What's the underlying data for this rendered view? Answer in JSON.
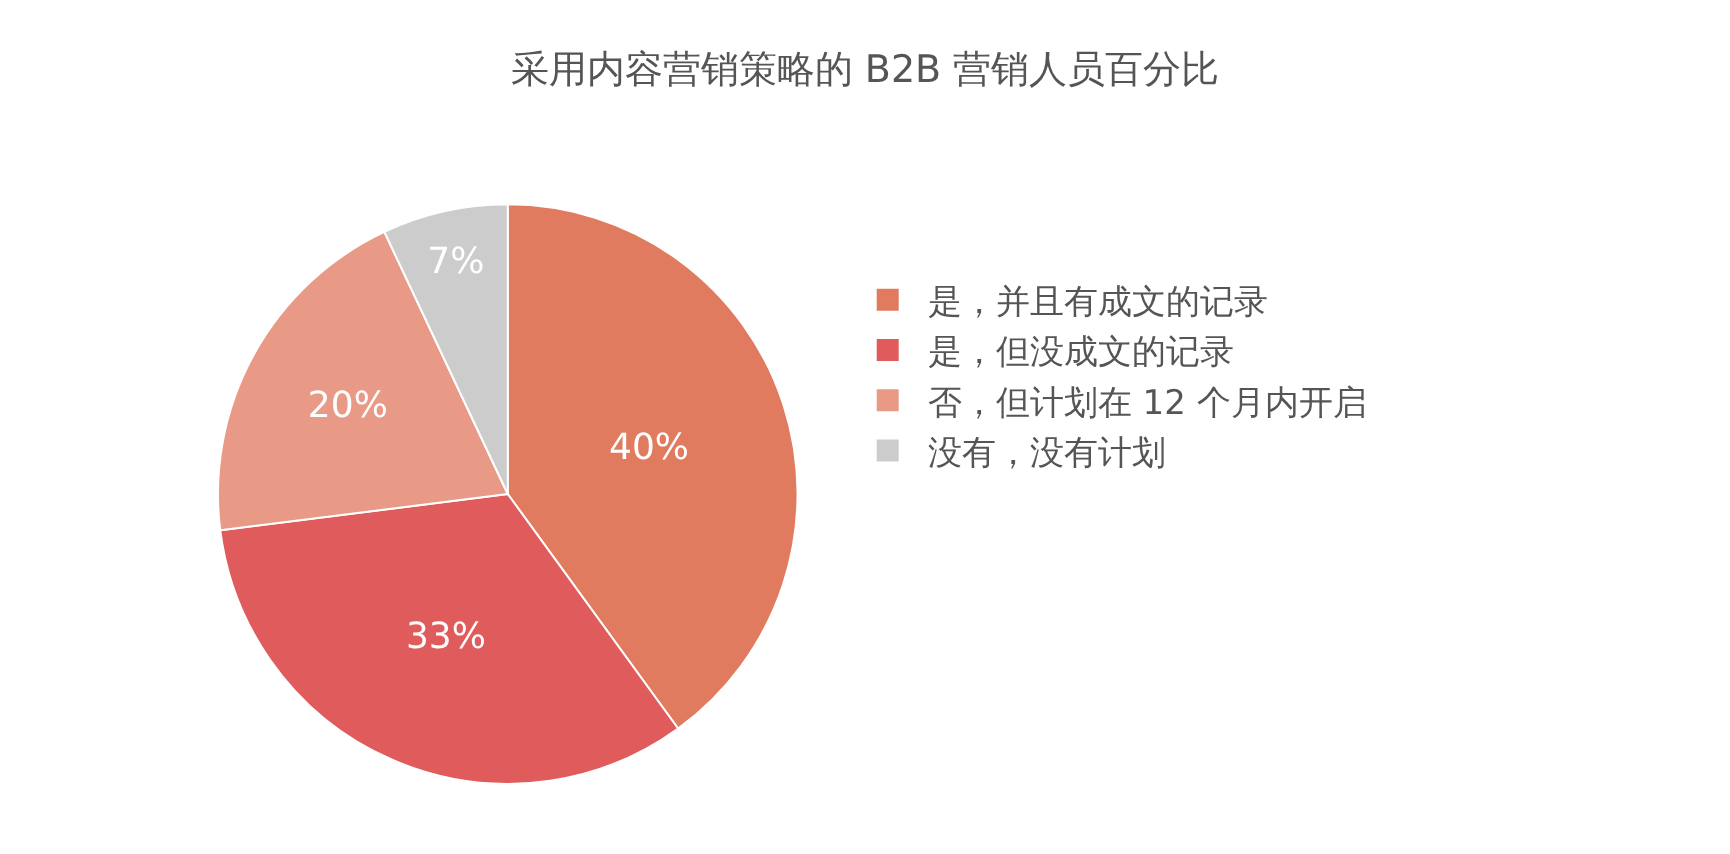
{
  "chart_data": {
    "type": "pie",
    "title": "采用内容营销策略的 B2B 营销人员百分比",
    "categories": [
      "是，并且有成文的记录",
      "是，但没成文的记录",
      "否，但计划在 12 个月内开启",
      "没有，没有计划"
    ],
    "values": [
      40,
      33,
      20,
      7
    ],
    "colors": [
      "#e07b5f",
      "#e05c5c",
      "#e89a87",
      "#cccccc"
    ],
    "value_labels": [
      "40%",
      "33%",
      "20%",
      "7%"
    ],
    "legend": "right"
  }
}
